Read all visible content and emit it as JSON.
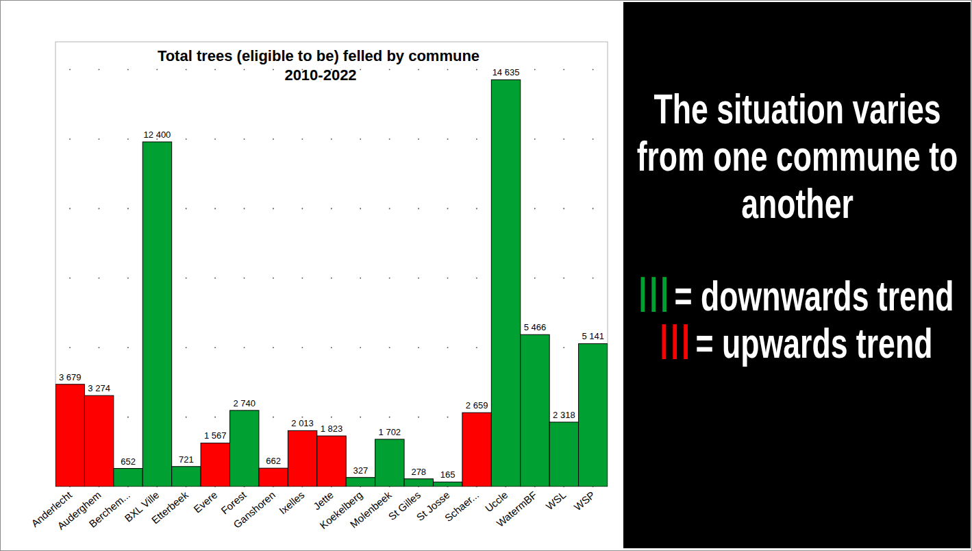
{
  "chart_data": {
    "type": "bar",
    "title": "Total trees (eligible to be) felled by commune",
    "subtitle": "2010-2022",
    "categories": [
      "Anderlecht",
      "Auderghem",
      "Berchem...",
      "BXL Ville",
      "Etterbeek",
      "Evere",
      "Forest",
      "Ganshoren",
      "Ixelles",
      "Jette",
      "Koekelberg",
      "Molenbeek",
      "St Gilles",
      "St Josse",
      "Schaer...",
      "Uccle",
      "WatermBF",
      "WSL",
      "WSP"
    ],
    "values": [
      3679,
      3274,
      652,
      12400,
      721,
      1567,
      2740,
      662,
      2013,
      1823,
      327,
      1702,
      278,
      165,
      2659,
      14635,
      5466,
      2318,
      5141
    ],
    "value_labels": [
      "3 679",
      "3 274",
      "652",
      "12 400",
      "721",
      "1 567",
      "2 740",
      "662",
      "2 013",
      "1 823",
      "327",
      "1 702",
      "278",
      "165",
      "2 659",
      "14 635",
      "5 466",
      "2 318",
      "5 141"
    ],
    "colors": [
      "#ff0000",
      "#ff0000",
      "#00a033",
      "#00a033",
      "#00a033",
      "#ff0000",
      "#00a033",
      "#ff0000",
      "#ff0000",
      "#ff0000",
      "#00a033",
      "#00a033",
      "#00a033",
      "#00a033",
      "#ff0000",
      "#00a033",
      "#00a033",
      "#00a033",
      "#00a033"
    ],
    "ylim": [
      0,
      16000
    ],
    "yticks": [
      0,
      2500,
      5000,
      7500,
      10000,
      12500,
      15000
    ],
    "grid": true,
    "tick_labels": "x",
    "data_labels": true,
    "annotations": [
      {
        "text": "The situation varies from one commune to another"
      },
      {
        "text": "= downwards trend",
        "color": "#00a033"
      },
      {
        "text": "= upwards trend",
        "color": "#ff0000"
      }
    ]
  }
}
